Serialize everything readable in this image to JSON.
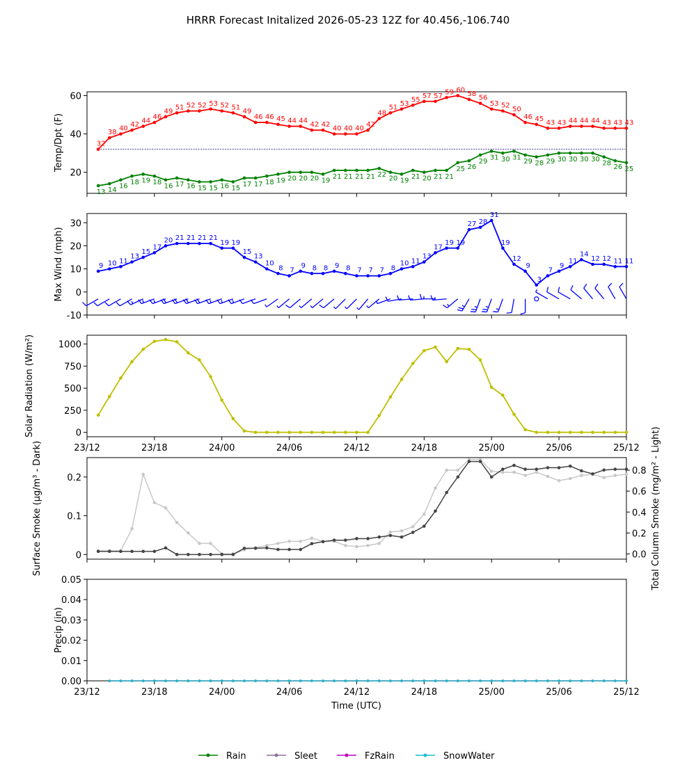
{
  "title": "HRRR Forecast Initalized 2026-05-23 12Z for 40.456,-106.740",
  "xlabel": "Time (UTC)",
  "x_ticks": [
    "23/12",
    "23/18",
    "24/00",
    "24/06",
    "24/12",
    "24/18",
    "25/00",
    "25/06",
    "25/12"
  ],
  "x_range_hours": [
    0,
    48
  ],
  "legend": {
    "placement": "bottom-center",
    "items": [
      {
        "label": "Rain",
        "color": "#008000"
      },
      {
        "label": "Sleet",
        "color": "#8c6fa0"
      },
      {
        "label": "FzRain",
        "color": "#c000c0"
      },
      {
        "label": "SnowWater",
        "color": "#17becf"
      }
    ]
  },
  "chart_data": [
    {
      "type": "line",
      "ylabel": "Temp/Dpt (F)",
      "ylim": [
        9,
        62
      ],
      "yticks": [
        20,
        40,
        60
      ],
      "x_hours": [
        1,
        2,
        3,
        4,
        5,
        6,
        7,
        8,
        9,
        10,
        11,
        12,
        13,
        14,
        15,
        16,
        17,
        18,
        19,
        20,
        21,
        22,
        23,
        24,
        25,
        26,
        27,
        28,
        29,
        30,
        31,
        32,
        33,
        34,
        35,
        36,
        37,
        38,
        39,
        40,
        41,
        42,
        43,
        44,
        45,
        46,
        47,
        48
      ],
      "series": [
        {
          "color": "#ff0000",
          "values": [
            32,
            38,
            40,
            42,
            44,
            46,
            49,
            51,
            52,
            52,
            53,
            52,
            51,
            49,
            46,
            46,
            45,
            44,
            44,
            42,
            42,
            40,
            40,
            40,
            42,
            48,
            51,
            53,
            55,
            57,
            57,
            59,
            60,
            58,
            56,
            53,
            52,
            50,
            46,
            45,
            43,
            43,
            44,
            44,
            44,
            43,
            43,
            43
          ]
        },
        {
          "color": "#008000",
          "values": [
            13,
            14,
            16,
            18,
            19,
            18,
            16,
            17,
            16,
            15,
            15,
            16,
            15,
            17,
            17,
            18,
            19,
            20,
            20,
            20,
            19,
            21,
            21,
            21,
            21,
            22,
            20,
            19,
            21,
            20,
            21,
            21,
            25,
            26,
            29,
            31,
            30,
            31,
            29,
            28,
            29,
            30,
            30,
            30,
            30,
            28,
            26,
            25
          ]
        }
      ],
      "reference_line": {
        "value": 32,
        "color": "#000080",
        "style": "dashed"
      }
    },
    {
      "type": "line",
      "ylabel": "Max Wind (mph)",
      "ylim": [
        -10,
        34
      ],
      "yticks": [
        -10,
        0,
        10,
        20,
        30
      ],
      "x_hours": [
        1,
        2,
        3,
        4,
        5,
        6,
        7,
        8,
        9,
        10,
        11,
        12,
        13,
        14,
        15,
        16,
        17,
        18,
        19,
        20,
        21,
        22,
        23,
        24,
        25,
        26,
        27,
        28,
        29,
        30,
        31,
        32,
        33,
        34,
        35,
        36,
        37,
        38,
        39,
        40,
        41,
        42,
        43,
        44,
        45,
        46,
        47,
        48
      ],
      "series": [
        {
          "color": "#0000ff",
          "values": [
            9,
            10,
            11,
            13,
            15,
            17,
            20,
            21,
            21,
            21,
            21,
            19,
            19,
            15,
            13,
            10,
            8,
            7,
            9,
            8,
            8,
            9,
            8,
            7,
            7,
            7,
            8,
            10,
            11,
            13,
            17,
            19,
            19,
            27,
            28,
            31,
            19,
            12,
            9,
            3,
            7,
            9,
            11,
            14,
            12,
            12,
            11,
            11
          ]
        }
      ],
      "wind_barbs": {
        "y": -3,
        "color": "#0000ff",
        "direction_deg": [
          240,
          240,
          240,
          240,
          245,
          250,
          250,
          250,
          250,
          250,
          250,
          250,
          250,
          250,
          250,
          250,
          235,
          230,
          230,
          230,
          230,
          230,
          225,
          225,
          220,
          230,
          250,
          260,
          265,
          265,
          270,
          265,
          230,
          210,
          200,
          200,
          200,
          190,
          180,
          0,
          300,
          300,
          300,
          310,
          320,
          320,
          330,
          330
        ]
      }
    },
    {
      "type": "line",
      "ylabel": "Solar Radiation (W/m²)",
      "ylim": [
        -50,
        1100
      ],
      "yticks": [
        0,
        250,
        500,
        750,
        1000
      ],
      "x_hours": [
        1,
        2,
        3,
        4,
        5,
        6,
        7,
        8,
        9,
        10,
        11,
        12,
        13,
        14,
        15,
        16,
        17,
        18,
        19,
        20,
        21,
        22,
        23,
        24,
        25,
        26,
        27,
        28,
        29,
        30,
        31,
        32,
        33,
        34,
        35,
        36,
        37,
        38,
        39,
        40,
        41,
        42,
        43,
        44,
        45,
        46,
        47,
        48
      ],
      "series": [
        {
          "color": "#bfbf00",
          "values": [
            195,
            405,
            615,
            800,
            940,
            1030,
            1050,
            1025,
            900,
            820,
            630,
            365,
            155,
            15,
            0,
            0,
            0,
            0,
            0,
            0,
            0,
            0,
            0,
            0,
            0,
            190,
            400,
            600,
            780,
            925,
            965,
            800,
            950,
            940,
            820,
            510,
            420,
            205,
            30,
            0,
            0,
            0,
            0,
            0,
            0,
            0,
            0,
            0
          ]
        }
      ]
    },
    {
      "type": "line",
      "ylabel": "Surface Smoke (μg/m³ - Dark)",
      "ylabel_right": "Total Column Smoke (mg/m² - Light)",
      "ylim": [
        -0.012,
        0.25
      ],
      "yticks": [
        0.0,
        0.1,
        0.2
      ],
      "y2lim": [
        -0.05,
        0.92
      ],
      "y2ticks": [
        0.0,
        0.2,
        0.4,
        0.6,
        0.8
      ],
      "x_hours": [
        1,
        2,
        3,
        4,
        5,
        6,
        7,
        8,
        9,
        10,
        11,
        12,
        13,
        14,
        15,
        16,
        17,
        18,
        19,
        20,
        21,
        22,
        23,
        24,
        25,
        26,
        27,
        28,
        29,
        30,
        31,
        32,
        33,
        34,
        35,
        36,
        37,
        38,
        39,
        40,
        41,
        42,
        43,
        44,
        45,
        46,
        47,
        48
      ],
      "series": [
        {
          "name": "",
          "axis": "left",
          "color": "#444444",
          "values": [
            0.008,
            0.008,
            0.008,
            0.008,
            0.008,
            0.008,
            0.017,
            0.0,
            0.0,
            0.0,
            0.0,
            0.0,
            0.0,
            0.016,
            0.016,
            0.017,
            0.013,
            0.013,
            0.013,
            0.028,
            0.033,
            0.037,
            0.037,
            0.041,
            0.041,
            0.045,
            0.049,
            0.045,
            0.057,
            0.073,
            0.112,
            0.16,
            0.2,
            0.24,
            0.24,
            0.2,
            0.22,
            0.23,
            0.22,
            0.22,
            0.224,
            0.224,
            0.228,
            0.216,
            0.208,
            0.218,
            0.22,
            0.22
          ]
        },
        {
          "name": "",
          "axis": "right",
          "color": "#c8c8c8",
          "values": [
            0.03,
            0.03,
            0.03,
            0.24,
            0.76,
            0.49,
            0.44,
            0.3,
            0.2,
            0.1,
            0.1,
            0.0,
            0.0,
            0.04,
            0.06,
            0.08,
            0.1,
            0.12,
            0.12,
            0.15,
            0.12,
            0.12,
            0.08,
            0.07,
            0.08,
            0.1,
            0.21,
            0.22,
            0.26,
            0.38,
            0.63,
            0.8,
            0.8,
            0.9,
            0.9,
            0.79,
            0.78,
            0.78,
            0.75,
            0.78,
            0.74,
            0.7,
            0.72,
            0.75,
            0.76,
            0.73,
            0.75,
            0.76
          ]
        }
      ]
    },
    {
      "type": "line",
      "ylabel": "Precip (in)",
      "ylim": [
        0,
        0.05
      ],
      "yticks": [
        "0.00",
        "0.01",
        "0.02",
        "0.03",
        "0.04",
        "0.05"
      ],
      "x_hours": [
        2,
        3,
        4,
        5,
        6,
        7,
        8,
        9,
        10,
        11,
        12,
        13,
        14,
        15,
        16,
        17,
        18,
        19,
        20,
        21,
        22,
        23,
        24,
        25,
        26,
        27,
        28,
        29,
        30,
        31,
        32,
        33,
        34,
        35,
        36,
        37,
        38,
        39,
        40,
        41,
        42,
        43,
        44,
        45,
        46,
        47,
        48
      ],
      "series": [
        {
          "name": "Rain",
          "color": "#008000",
          "values": [
            0,
            0,
            0,
            0,
            0,
            0,
            0,
            0,
            0,
            0,
            0,
            0,
            0,
            0,
            0,
            0,
            0,
            0,
            0,
            0,
            0,
            0,
            0,
            0,
            0,
            0,
            0,
            0,
            0,
            0,
            0,
            0,
            0,
            0,
            0,
            0,
            0,
            0,
            0,
            0,
            0,
            0,
            0,
            0,
            0,
            0,
            0
          ]
        },
        {
          "name": "Sleet",
          "color": "#8c6fa0",
          "values": [
            0,
            0,
            0,
            0,
            0,
            0,
            0,
            0,
            0,
            0,
            0,
            0,
            0,
            0,
            0,
            0,
            0,
            0,
            0,
            0,
            0,
            0,
            0,
            0,
            0,
            0,
            0,
            0,
            0,
            0,
            0,
            0,
            0,
            0,
            0,
            0,
            0,
            0,
            0,
            0,
            0,
            0,
            0,
            0,
            0,
            0,
            0
          ]
        },
        {
          "name": "FzRain",
          "color": "#c000c0",
          "values": [
            0,
            0,
            0,
            0,
            0,
            0,
            0,
            0,
            0,
            0,
            0,
            0,
            0,
            0,
            0,
            0,
            0,
            0,
            0,
            0,
            0,
            0,
            0,
            0,
            0,
            0,
            0,
            0,
            0,
            0,
            0,
            0,
            0,
            0,
            0,
            0,
            0,
            0,
            0,
            0,
            0,
            0,
            0,
            0,
            0,
            0,
            0
          ]
        },
        {
          "name": "SnowWater",
          "color": "#17becf",
          "values": [
            0,
            0,
            0,
            0,
            0,
            0,
            0,
            0,
            0,
            0,
            0,
            0,
            0,
            0,
            0,
            0,
            0,
            0,
            0,
            0,
            0,
            0,
            0,
            0,
            0,
            0,
            0,
            0,
            0,
            0,
            0,
            0,
            0,
            0,
            0,
            0,
            0,
            0,
            0,
            0,
            0,
            0,
            0,
            0,
            0,
            0,
            0
          ]
        }
      ]
    }
  ]
}
